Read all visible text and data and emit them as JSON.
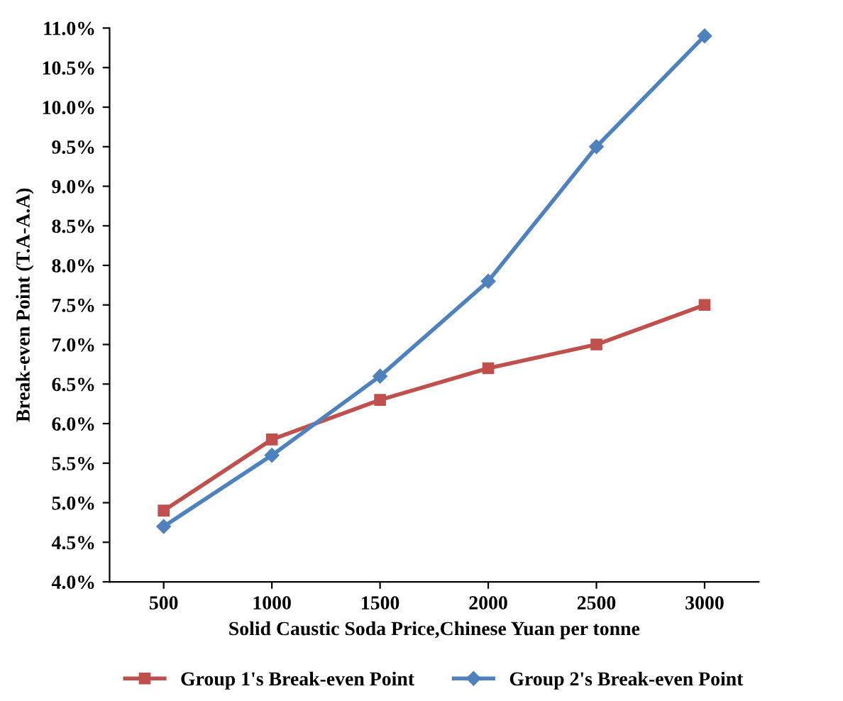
{
  "chart_data": {
    "type": "line",
    "xlabel": "Solid Caustic Soda Price,Chinese Yuan per tonne",
    "ylabel": "Break-even Point (T.A-A.A)",
    "categories": [
      "500",
      "1000",
      "1500",
      "2000",
      "2500",
      "3000"
    ],
    "series": [
      {
        "name": "Group 1's Break-even Point",
        "color": "#c0504d",
        "marker": "square",
        "values": [
          4.9,
          5.8,
          6.3,
          6.7,
          7.0,
          7.5
        ]
      },
      {
        "name": "Group 2's Break-even Point",
        "color": "#4f81bd",
        "marker": "diamond",
        "values": [
          4.7,
          5.6,
          6.6,
          7.8,
          9.5,
          10.9
        ]
      }
    ],
    "ylim": [
      4.0,
      11.0
    ],
    "yticks": [
      {
        "value": 4.0,
        "label": "4.0%"
      },
      {
        "value": 4.5,
        "label": "4.5%"
      },
      {
        "value": 5.0,
        "label": "5.0%"
      },
      {
        "value": 5.5,
        "label": "5.5%"
      },
      {
        "value": 6.0,
        "label": "6.0%"
      },
      {
        "value": 6.5,
        "label": "6.5%"
      },
      {
        "value": 7.0,
        "label": "7.0%"
      },
      {
        "value": 7.5,
        "label": "7.5%"
      },
      {
        "value": 8.0,
        "label": "8.0%"
      },
      {
        "value": 8.5,
        "label": "8.5%"
      },
      {
        "value": 9.0,
        "label": "9.0%"
      },
      {
        "value": 9.5,
        "label": "9.5%"
      },
      {
        "value": 10.0,
        "label": "10.0%"
      },
      {
        "value": 10.5,
        "label": "10.5%"
      },
      {
        "value": 11.0,
        "label": "11.0%"
      }
    ],
    "grid": false,
    "legend": "bottom",
    "line_style": "solid"
  }
}
